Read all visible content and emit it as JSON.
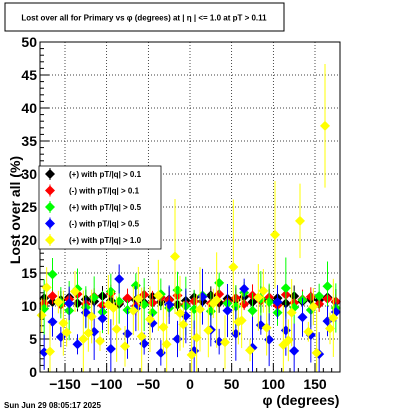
{
  "chart_data": {
    "type": "scatter",
    "title": "Lost over all for Primary vs φ (degrees) at | η | <= 1.0 at pT > 0.11",
    "xlabel": "φ (degrees)",
    "ylabel": "Lost over all (%)",
    "xlim": [
      -180,
      180
    ],
    "ylim": [
      0,
      50
    ],
    "x_ticks": [
      -150,
      -100,
      -50,
      0,
      50,
      100,
      150
    ],
    "y_ticks": [
      0,
      5,
      10,
      15,
      20,
      25,
      30,
      35,
      40,
      45,
      50
    ],
    "grid": true,
    "legend_position": "middle-left",
    "footer": "Sun Jun 29 08:05:17 2025",
    "series": [
      {
        "name": "(+) with pT/|q| > 0.1",
        "color": "#000000",
        "x": [
          -175,
          -165,
          -155,
          -145,
          -135,
          -125,
          -115,
          -105,
          -95,
          -85,
          -75,
          -65,
          -55,
          -45,
          -35,
          -25,
          -15,
          -5,
          5,
          15,
          25,
          35,
          45,
          55,
          65,
          75,
          85,
          95,
          105,
          115,
          125,
          135,
          145,
          155,
          165,
          175
        ],
        "y": [
          11.2,
          10.6,
          10.9,
          11.3,
          10.4,
          11.0,
          10.7,
          11.5,
          10.8,
          10.3,
          11.1,
          10.9,
          10.5,
          11.4,
          10.6,
          11.0,
          10.2,
          10.8,
          11.3,
          10.7,
          11.6,
          10.5,
          11.1,
          10.9,
          11.4,
          10.6,
          11.0,
          10.8,
          11.2,
          10.4,
          11.5,
          10.7,
          11.0,
          10.9,
          11.3,
          10.6
        ]
      },
      {
        "name": "(-) with pT/|q| > 0.1",
        "color": "#ff0000",
        "x": [
          -175,
          -165,
          -155,
          -145,
          -135,
          -125,
          -115,
          -105,
          -95,
          -85,
          -75,
          -65,
          -55,
          -45,
          -35,
          -25,
          -15,
          -5,
          5,
          15,
          25,
          35,
          45,
          55,
          65,
          75,
          85,
          95,
          105,
          115,
          125,
          135,
          145,
          155,
          165,
          175
        ],
        "y": [
          10.4,
          11.5,
          10.2,
          11.0,
          11.8,
          10.3,
          11.4,
          10.1,
          11.9,
          10.6,
          11.2,
          10.0,
          11.7,
          10.5,
          11.3,
          10.9,
          11.6,
          10.2,
          10.7,
          11.5,
          10.4,
          11.8,
          10.6,
          11.2,
          10.3,
          11.6,
          10.8,
          11.3,
          10.1,
          11.7,
          10.5,
          11.0,
          11.4,
          10.3,
          11.1,
          10.7
        ]
      },
      {
        "name": "(+) with pT/|q| > 0.5",
        "color": "#00ff00",
        "x": [
          -175,
          -165,
          -155,
          -145,
          -135,
          -125,
          -115,
          -105,
          -95,
          -85,
          -75,
          -65,
          -55,
          -45,
          -35,
          -25,
          -15,
          -5,
          5,
          15,
          25,
          35,
          45,
          55,
          65,
          75,
          85,
          95,
          105,
          115,
          125,
          135,
          145,
          155,
          165,
          175
        ],
        "y": [
          9.6,
          14.8,
          10.5,
          9.3,
          12.6,
          9.8,
          11.3,
          9.1,
          12.2,
          10.7,
          9.4,
          13.1,
          10.2,
          9.0,
          11.8,
          9.7,
          12.4,
          10.0,
          9.5,
          11.6,
          9.2,
          13.5,
          10.4,
          9.9,
          12.0,
          9.3,
          11.1,
          10.6,
          9.0,
          12.7,
          9.8,
          10.9,
          9.4,
          11.5,
          13.0,
          9.7
        ]
      },
      {
        "name": "(-) with pT/|q| > 0.5",
        "color": "#0000ff",
        "x": [
          -175,
          -165,
          -155,
          -145,
          -135,
          -125,
          -115,
          -105,
          -95,
          -85,
          -75,
          -65,
          -55,
          -45,
          -35,
          -25,
          -15,
          -5,
          5,
          15,
          25,
          35,
          45,
          55,
          65,
          75,
          85,
          95,
          105,
          115,
          125,
          135,
          145,
          155,
          165,
          175
        ],
        "y": [
          3.0,
          7.6,
          5.3,
          10.4,
          4.2,
          9.0,
          6.1,
          8.1,
          3.5,
          14.1,
          5.8,
          9.6,
          4.3,
          7.4,
          2.9,
          10.2,
          5.0,
          8.5,
          3.2,
          11.4,
          6.4,
          4.6,
          9.3,
          5.8,
          12.6,
          3.7,
          7.1,
          4.9,
          10.6,
          6.3,
          3.2,
          8.3,
          5.6,
          2.7,
          7.7,
          9.1
        ]
      },
      {
        "name": "(+) with pT/|q| > 1.0",
        "color": "#ffff00",
        "x": [
          -178,
          -168,
          -158,
          -148,
          -138,
          -128,
          -118,
          -108,
          -98,
          -88,
          -78,
          -68,
          -58,
          -48,
          -38,
          -28,
          -18,
          -8,
          2,
          12,
          22,
          32,
          42,
          52,
          62,
          72,
          82,
          92,
          102,
          112,
          122,
          132,
          142,
          152,
          162,
          172,
          -172,
          -152,
          -122,
          -92,
          -62,
          -32,
          -12,
          8,
          28,
          58,
          88,
          118,
          148,
          168
        ],
        "y": [
          8.6,
          3.1,
          10.6,
          6.0,
          12.2,
          5.0,
          8.4,
          4.7,
          10.2,
          6.5,
          3.9,
          9.3,
          5.4,
          8.0,
          11.6,
          4.2,
          17.5,
          7.2,
          2.6,
          9.5,
          6.3,
          10.9,
          4.5,
          15.9,
          7.8,
          3.3,
          11.3,
          6.7,
          20.8,
          4.1,
          9.0,
          22.9,
          6.1,
          2.9,
          37.3,
          8.2,
          12.8,
          7.4,
          5.9,
          9.7,
          11.1,
          6.8,
          8.9,
          5.2,
          10.4,
          7.6,
          12.3,
          4.8,
          9.9,
          6.6
        ]
      }
    ]
  }
}
